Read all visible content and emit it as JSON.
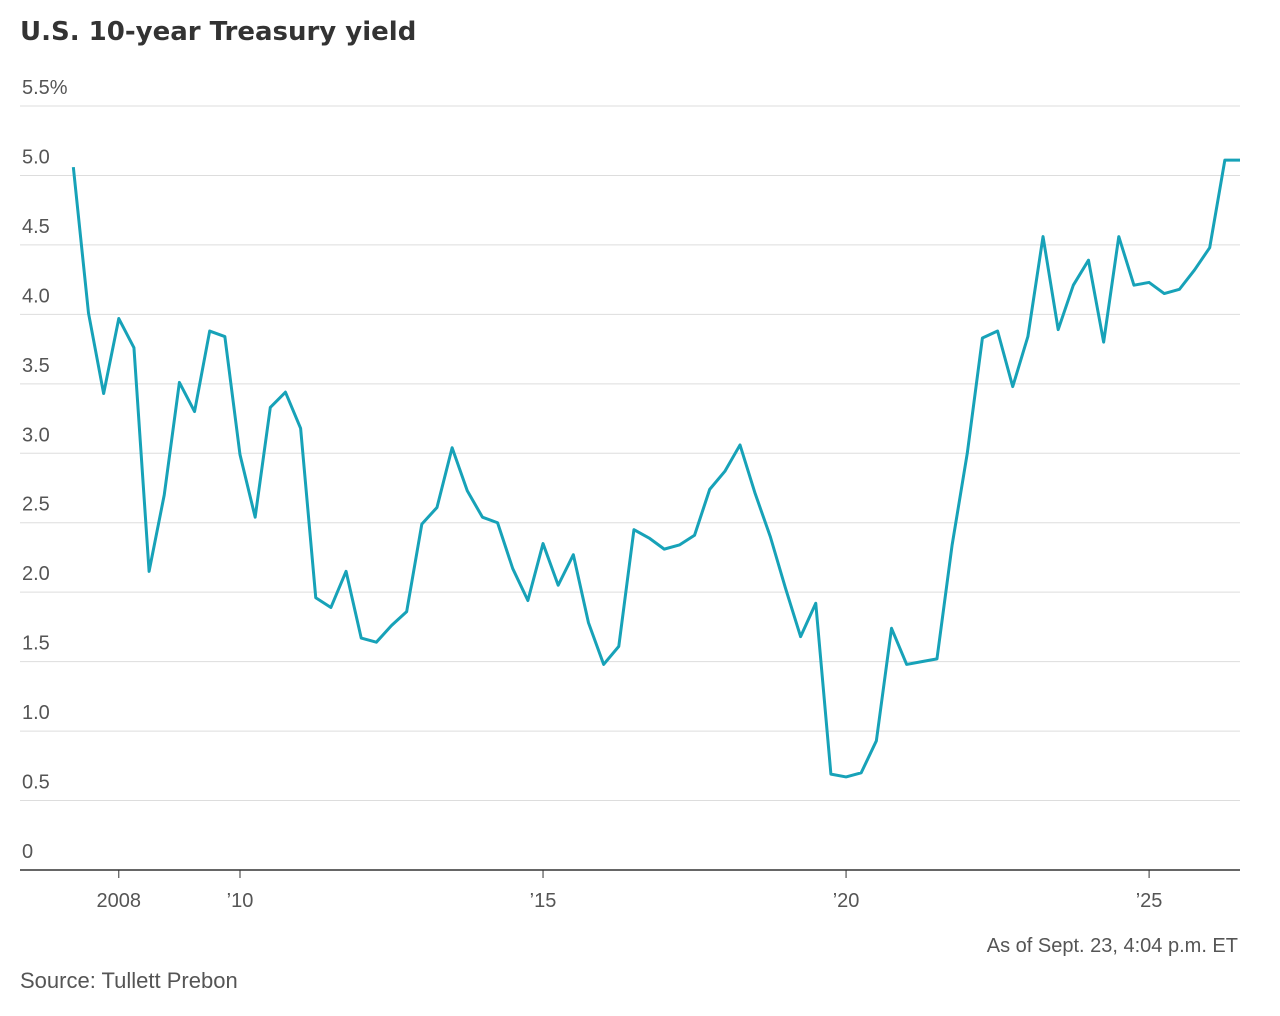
{
  "chart_data": {
    "type": "line",
    "title": "U.S. 10-year Treasury yield",
    "note": "As of Sept. 23, 4:04 p.m. ET",
    "source": "Source: Tullett Prebon",
    "x": [
      2007.25,
      2007.5,
      2007.75,
      2008,
      2008.25,
      2008.5,
      2008.75,
      2009,
      2009.25,
      2009.5,
      2009.75,
      2010,
      2010.25,
      2010.5,
      2010.75,
      2011,
      2011.25,
      2011.5,
      2011.75,
      2012,
      2012.25,
      2012.5,
      2012.75,
      2013,
      2013.25,
      2013.5,
      2013.75,
      2014,
      2014.25,
      2014.5,
      2014.75,
      2015,
      2015.25,
      2015.5,
      2015.75,
      2016,
      2016.25,
      2016.5,
      2016.75,
      2017,
      2017.25,
      2017.5,
      2017.75,
      2018,
      2018.25,
      2018.5,
      2018.75,
      2019,
      2019.25,
      2019.5,
      2019.75,
      2020,
      2020.25,
      2020.5,
      2020.75,
      2021,
      2021.25,
      2021.5,
      2021.75,
      2022,
      2022.25,
      2022.5,
      2022.75,
      2023,
      2023.25,
      2023.5,
      2023.75,
      2024,
      2024.25,
      2024.5,
      2024.75,
      2025,
      2025.25,
      2025.5,
      2025.75,
      2026,
      2026.25,
      2026.5
    ],
    "series": [
      {
        "name": "10-year yield",
        "color": "#17a2b8",
        "values": [
          5.06,
          4.01,
          3.43,
          3.97,
          3.76,
          2.15,
          2.7,
          3.51,
          3.3,
          3.88,
          3.84,
          2.99,
          2.54,
          3.33,
          3.44,
          3.18,
          1.96,
          1.89,
          2.15,
          1.67,
          1.64,
          1.76,
          1.86,
          2.49,
          2.61,
          3.04,
          2.73,
          2.54,
          2.5,
          2.17,
          1.94,
          2.35,
          2.05,
          2.27,
          1.78,
          1.48,
          1.61,
          2.45,
          2.39,
          2.31,
          2.34,
          2.41,
          2.74,
          2.87,
          3.06,
          2.71,
          2.4,
          2.03,
          1.68,
          1.92,
          0.69,
          0.67,
          0.7,
          0.93,
          1.74,
          1.48,
          1.5,
          1.52,
          2.34,
          3.0,
          3.83,
          3.88,
          3.48,
          3.84,
          4.56,
          3.89,
          4.21,
          4.39,
          3.8,
          4.56,
          4.21,
          4.23,
          4.15,
          4.18,
          4.32,
          4.48,
          5.11,
          5.11
        ]
      }
    ],
    "xlim": [
      2006.37,
      2026.5
    ],
    "xticks": [
      {
        "value": 2008,
        "label": "2008"
      },
      {
        "value": 2010,
        "label": "’10"
      },
      {
        "value": 2015,
        "label": "’15"
      },
      {
        "value": 2020,
        "label": "’20"
      },
      {
        "value": 2025,
        "label": "’25"
      }
    ],
    "ylim": [
      0,
      5.5
    ],
    "yticks": [
      0,
      0.5,
      {
        "value": 1,
        "label": "1.0"
      },
      1.5,
      {
        "value": 2,
        "label": "2.0"
      },
      2.5,
      {
        "value": 3,
        "label": "3.0"
      },
      3.5,
      {
        "value": 4,
        "label": "4.0"
      },
      4.5,
      {
        "value": 5,
        "label": "5.0"
      },
      {
        "value": 5.5,
        "label": "5.5%"
      }
    ],
    "grid": true
  }
}
